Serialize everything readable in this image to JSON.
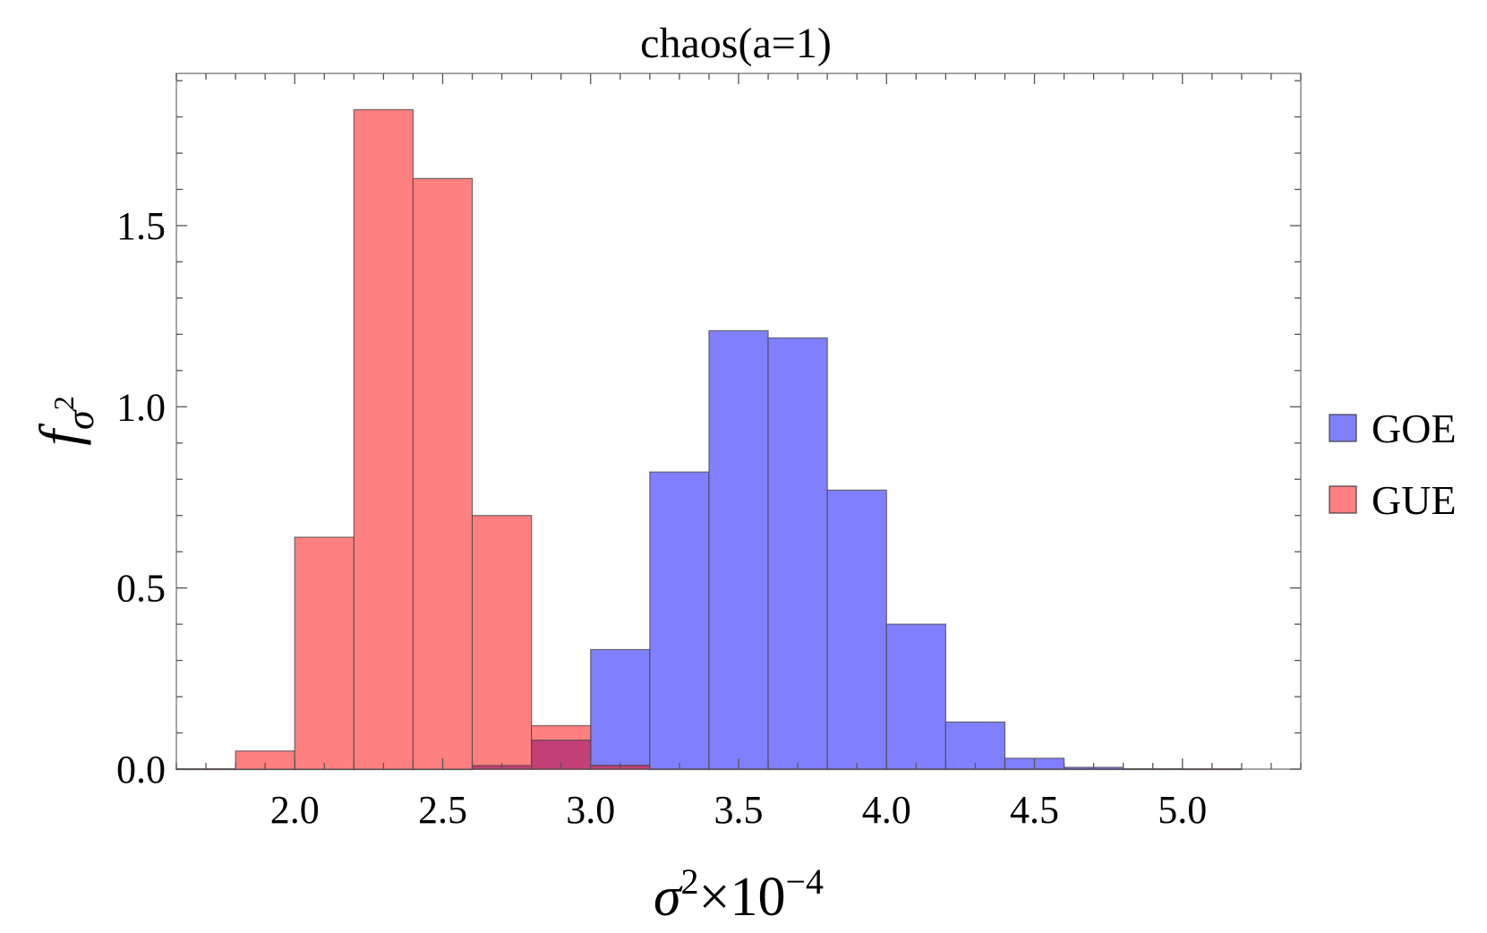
{
  "chart_data": {
    "type": "bar",
    "title": "chaos(a=1)",
    "xlabel": {
      "base": "σ",
      "sup": "2",
      "rest": "×10",
      "rest_sup": "−4"
    },
    "ylabel": {
      "base": "f",
      "sub": "σ",
      "sub_sup": "2"
    },
    "xlim": [
      1.6,
      5.4
    ],
    "ylim": [
      0,
      1.92
    ],
    "x_ticks": [
      "2.0",
      "2.5",
      "3.0",
      "3.5",
      "4.0",
      "4.5",
      "5.0"
    ],
    "y_ticks": [
      "0.0",
      "0.5",
      "1.0",
      "1.5"
    ],
    "bin_edges": [
      1.6,
      1.8,
      2.0,
      2.2,
      2.4,
      2.6,
      2.8,
      3.0,
      3.2,
      3.4,
      3.6,
      3.8,
      4.0,
      4.2,
      4.4,
      4.6,
      4.8,
      5.0,
      5.2
    ],
    "series": [
      {
        "name": "GOE",
        "color": "#8080ff",
        "values": [
          0,
          0,
          0,
          0,
          0,
          0.01,
          0.08,
          0.33,
          0.82,
          1.21,
          1.19,
          0.77,
          0.4,
          0.13,
          0.03,
          0.005,
          0.001,
          0.0005
        ]
      },
      {
        "name": "GUE",
        "color": "#ff8080",
        "values": [
          0.001,
          0.05,
          0.64,
          1.82,
          1.63,
          0.7,
          0.12,
          0.01,
          0,
          0,
          0,
          0,
          0,
          0,
          0,
          0,
          0,
          0
        ]
      }
    ],
    "overlap_color": "#c24076",
    "grid": false,
    "legend": "right"
  }
}
